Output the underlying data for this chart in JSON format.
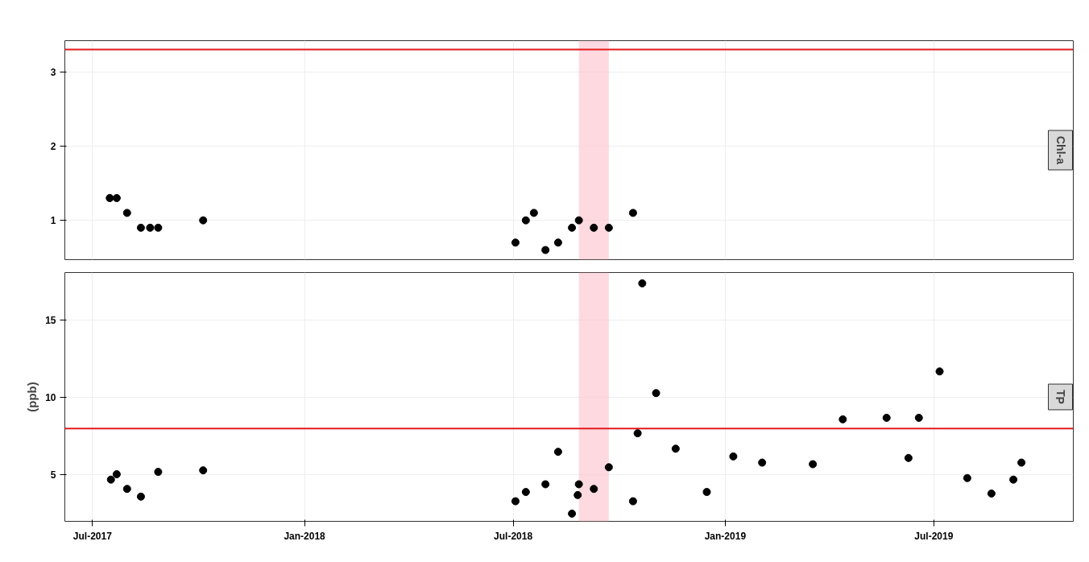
{
  "chart_data": [
    {
      "type": "scatter",
      "title": "Chl-a",
      "marker": "circle",
      "grid": true,
      "tick_labels": "y",
      "x": [
        "2017-07-16",
        "2017-07-22",
        "2017-07-31",
        "2017-08-12",
        "2017-08-20",
        "2017-08-27",
        "2017-10-05",
        "2018-07-03",
        "2018-07-12",
        "2018-07-19",
        "2018-07-29",
        "2018-08-09",
        "2018-08-21",
        "2018-08-27",
        "2018-09-09",
        "2018-09-22",
        "2018-10-13"
      ],
      "series": [
        {
          "color": "#000000",
          "values": [
            1.3,
            1.3,
            1.1,
            0.9,
            0.9,
            0.9,
            1.0,
            0.7,
            1.0,
            1.1,
            0.6,
            0.7,
            0.9,
            1.0,
            0.9,
            0.9,
            1.1
          ]
        }
      ],
      "xlim": [
        "2017-06-07",
        "2019-10-30"
      ],
      "xticks": [
        {
          "value": "2017-07-01",
          "label": null
        },
        {
          "value": "2018-01-01",
          "label": null
        },
        {
          "value": "2018-07-01",
          "label": null
        },
        {
          "value": "2019-01-01",
          "label": null
        },
        {
          "value": "2019-07-01",
          "label": null
        }
      ],
      "ylim": [
        0.47,
        3.42
      ],
      "yticks": [
        1,
        2,
        3
      ],
      "ref_lines": [
        {
          "axis": "y",
          "value": 3.3,
          "color": "#e31a1c"
        }
      ],
      "bands": [
        {
          "axis": "x",
          "from": "2018-08-27",
          "to": "2018-09-22",
          "color": "#ffc0cb"
        }
      ]
    },
    {
      "type": "scatter",
      "title": "TP",
      "ylabel": "(ppb)",
      "marker": "circle",
      "grid": true,
      "x": [
        "2017-07-17",
        "2017-07-22",
        "2017-07-31",
        "2017-08-12",
        "2017-08-27",
        "2017-10-05",
        "2018-07-03",
        "2018-07-12",
        "2018-07-29",
        "2018-08-09",
        "2018-08-21",
        "2018-08-26",
        "2018-08-27",
        "2018-09-09",
        "2018-09-22",
        "2018-10-13",
        "2018-10-17",
        "2018-10-21",
        "2018-11-02",
        "2018-11-19",
        "2018-12-16",
        "2019-01-08",
        "2019-02-02",
        "2019-03-18",
        "2019-04-13",
        "2019-05-21",
        "2019-06-09",
        "2019-06-18",
        "2019-07-06",
        "2019-07-30",
        "2019-08-20",
        "2019-09-08",
        "2019-09-15"
      ],
      "series": [
        {
          "color": "#000000",
          "values": [
            4.7,
            5.05,
            4.1,
            3.6,
            5.2,
            5.3,
            3.3,
            3.9,
            4.4,
            6.5,
            2.5,
            3.7,
            4.4,
            4.1,
            5.5,
            3.3,
            7.7,
            17.4,
            10.3,
            6.7,
            3.9,
            6.2,
            5.8,
            5.7,
            8.6,
            8.7,
            6.1,
            8.7,
            11.7,
            4.8,
            3.8,
            4.7,
            5.8
          ]
        }
      ],
      "xlim": [
        "2017-06-07",
        "2019-10-30"
      ],
      "xticks": [
        {
          "value": "2017-07-01",
          "label": "Jul-2017"
        },
        {
          "value": "2018-01-01",
          "label": "Jan-2018"
        },
        {
          "value": "2018-07-01",
          "label": "Jul-2018"
        },
        {
          "value": "2019-01-01",
          "label": "Jan-2019"
        },
        {
          "value": "2019-07-01",
          "label": "Jul-2019"
        }
      ],
      "ylim": [
        2,
        18.1
      ],
      "yticks": [
        5,
        10,
        15
      ],
      "ref_lines": [
        {
          "axis": "y",
          "value": 8,
          "color": "#e31a1c"
        }
      ],
      "bands": [
        {
          "axis": "x",
          "from": "2018-08-27",
          "to": "2018-09-22",
          "color": "#ffc0cb"
        }
      ]
    }
  ]
}
